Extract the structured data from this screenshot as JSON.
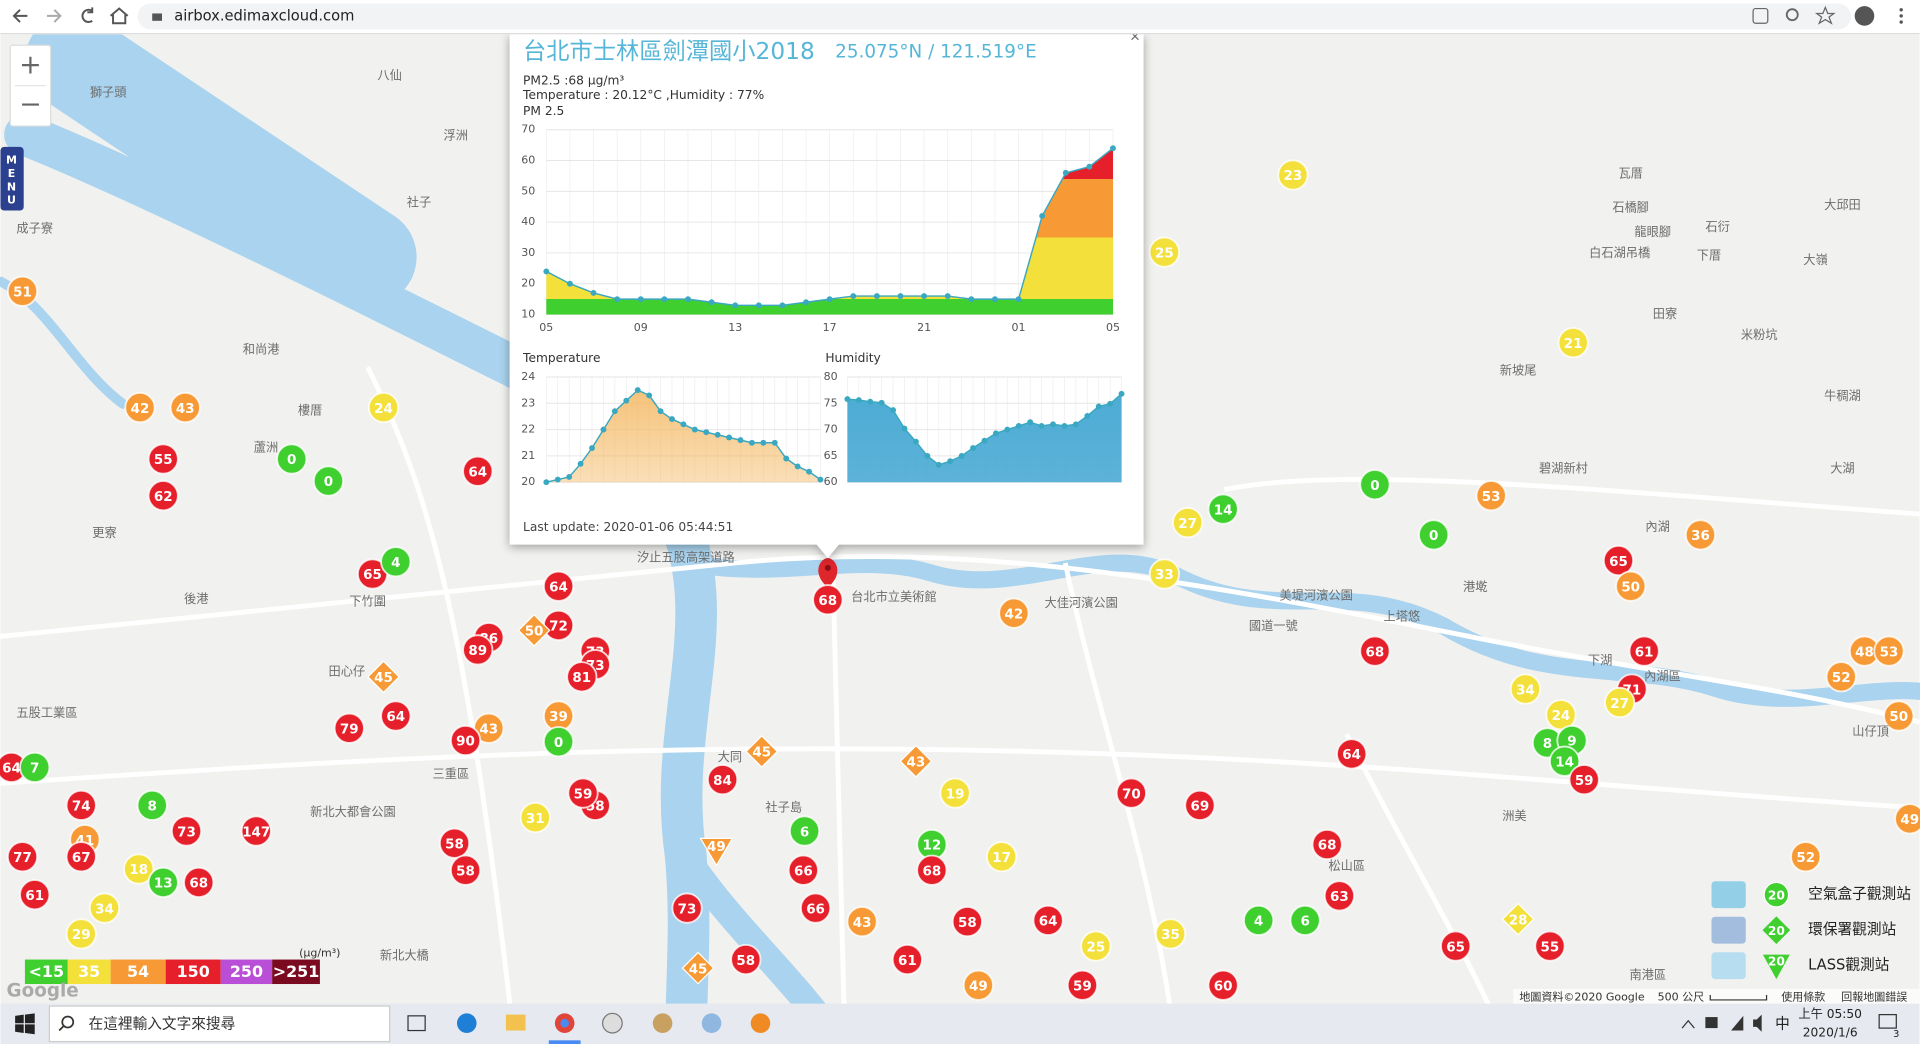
{
  "browser": {
    "url": "airbox.edimaxcloud.com"
  },
  "map": {
    "zoom_in": "+",
    "zoom_out": "−",
    "menu": [
      "M",
      "E",
      "N",
      "U"
    ],
    "labels": [
      "八仙",
      "獅子頭",
      "浮洲",
      "社子",
      "成子寮",
      "瓦厝",
      "石橋腳",
      "龍眼腳",
      "石衍",
      "大邱田",
      "下厝",
      "大嶺",
      "白石湖吊橋",
      "田寮",
      "米粉坑",
      "新坡尾",
      "牛稠湖",
      "碧湖新村",
      "大湖",
      "內湖",
      "港墘",
      "上塔悠",
      "和尚港",
      "樓厝",
      "蘆洲",
      "更寮",
      "下竹圍",
      "後港",
      "田心仔",
      "三重區",
      "五股工業區",
      "新北大都會公園",
      "大同",
      "台北市立美術館",
      "大佳河濱公園",
      "美堤河濱公園",
      "松山區",
      "內湖區",
      "下湖",
      "山仔頂",
      "南港區",
      "新北大橋",
      "洲美",
      "社子島",
      "汐止五股高架道路",
      "國道一號"
    ],
    "markers": [
      51,
      42,
      43,
      24,
      55,
      62,
      0,
      0,
      64,
      65,
      4,
      64,
      72,
      86,
      89,
      73,
      73,
      81,
      45,
      50,
      39,
      43,
      0,
      90,
      64,
      79,
      64,
      7,
      74,
      8,
      73,
      147,
      41,
      77,
      67,
      18,
      13,
      68,
      61,
      34,
      29,
      31,
      58,
      59,
      58,
      58,
      84,
      45,
      43,
      19,
      6,
      66,
      12,
      68,
      17,
      66,
      43,
      73,
      49,
      58,
      64,
      70,
      69,
      68,
      63,
      4,
      6,
      25,
      35,
      61,
      58,
      45,
      49,
      59,
      60,
      65,
      55,
      28,
      64,
      68,
      61,
      71,
      27,
      34,
      24,
      8,
      9,
      14,
      59,
      65,
      50,
      36,
      53,
      0,
      0,
      14,
      27,
      33,
      42,
      23,
      25,
      21,
      52,
      48,
      53,
      50,
      52,
      49,
      68
    ]
  },
  "popup": {
    "close": "×",
    "title": "台北市士林區劍潭國小2018",
    "coords": "25.075°N / 121.519°E",
    "pm25_line": "PM2.5 :68 μg/m³",
    "weather_line": "Temperature : 20.12°C ,Humidity : 77%",
    "last_update": "Last update: 2020-01-06 05:44:51",
    "charts": [
      {
        "type": "area",
        "title": "PM 2.5",
        "categories": [
          "05",
          null,
          null,
          null,
          "09",
          null,
          null,
          null,
          "13",
          null,
          null,
          null,
          "17",
          null,
          null,
          null,
          "21",
          null,
          null,
          null,
          "01",
          null,
          null,
          null,
          "05"
        ],
        "values": [
          24,
          20,
          17,
          15,
          15,
          15,
          15,
          14,
          13,
          13,
          13,
          14,
          15,
          16,
          16,
          16,
          16,
          16,
          15,
          15,
          15,
          42,
          56,
          58,
          64
        ],
        "ylim": [
          10,
          70
        ],
        "yticks": [
          10,
          20,
          30,
          40,
          50,
          60,
          70
        ],
        "color": "#3aa8c1",
        "grid": true
      },
      {
        "type": "area",
        "title": "Temperature",
        "values": [
          20.0,
          20.1,
          20.2,
          20.7,
          21.3,
          22.0,
          22.7,
          23.1,
          23.5,
          23.3,
          22.7,
          22.4,
          22.2,
          22.0,
          21.9,
          21.8,
          21.7,
          21.6,
          21.5,
          21.5,
          21.5,
          20.9,
          20.6,
          20.4,
          20.1
        ],
        "ylim": [
          20,
          24
        ],
        "yticks": [
          20,
          21,
          22,
          23,
          24
        ],
        "color": "#f4b760",
        "grid": true
      },
      {
        "type": "area",
        "title": "Humidity",
        "values": [
          75.8,
          75.6,
          75.3,
          75.1,
          73.7,
          70.2,
          67.7,
          65.0,
          63.3,
          64.0,
          65.0,
          66.5,
          67.9,
          69.3,
          70.0,
          70.7,
          71.4,
          70.7,
          71.0,
          70.7,
          71.0,
          72.6,
          74.4,
          74.9,
          76.8
        ],
        "ylim": [
          60,
          80
        ],
        "yticks": [
          60,
          65,
          70,
          75,
          80
        ],
        "color": "#4aaad4",
        "grid": true
      }
    ]
  },
  "legend": {
    "unit": "(μg/m³)",
    "levels": [
      {
        "value": 15,
        "label": "<15"
      },
      35,
      54,
      150,
      250,
      {
        "value": 251,
        "label": ">251"
      }
    ],
    "colors": [
      "#3fcf2f",
      "#f4e03a",
      "#f79a35",
      "#e6202b",
      "#b84fd6",
      "#7a0a20"
    ]
  },
  "station_legend": {
    "icon_value": "20",
    "items": [
      "空氣盒子觀測站",
      "環保署觀測站",
      "LASS觀測站"
    ]
  },
  "attribution": {
    "google": "Google",
    "items": [
      "地圖資料©2020 Google",
      "500 公尺",
      "使用條款",
      "回報地圖錯誤"
    ]
  },
  "taskbar": {
    "search": "在這裡輸入文字來搜尋",
    "ime": "中",
    "time": "上午 05:50",
    "date": "2020/1/6",
    "notifications": "3"
  }
}
